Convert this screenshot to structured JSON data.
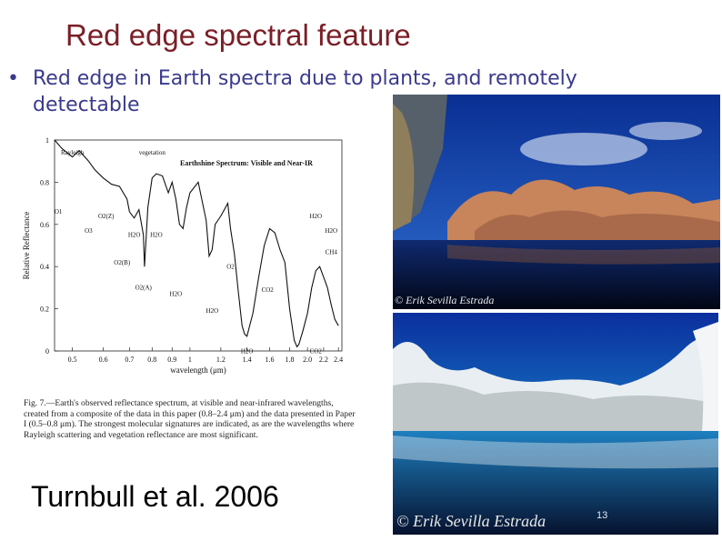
{
  "slide": {
    "title": "Red edge spectral feature",
    "bullet_marker": "•",
    "bullet_text": "Red edge in Earth spectra due to plants, and remotely detectable",
    "citation": "Turnbull et al. 2006",
    "page_number": "13"
  },
  "figure": {
    "caption": "Fig. 7.—Earth's observed reflectance spectrum, at visible and near-infrared wavelengths, created from a composite of the data in this paper (0.8–2.4 μm) and the data presented in Paper I (0.5–0.8 μm). The strongest molecular signatures are indicated, as are the wavelengths where Rayleigh scattering and vegetation reflectance are most significant."
  },
  "chart_data": {
    "type": "line",
    "title": "Earthshine Spectrum: Visible and Near-IR",
    "xlabel": "wavelength (μm)",
    "ylabel": "Relative Reflectance",
    "x_scale": "log",
    "xlim": [
      0.45,
      2.45
    ],
    "ylim": [
      0,
      1
    ],
    "x_ticks": [
      0.5,
      0.6,
      0.7,
      0.8,
      0.9,
      1.0,
      1.2,
      1.4,
      1.6,
      1.8,
      2.0,
      2.2,
      2.4
    ],
    "x_tick_labels": [
      "0.5",
      "0.6",
      "0.7",
      "0.8",
      "0.9",
      "1",
      "1.2",
      "1.4",
      "1.6",
      "1.8",
      "2.0",
      "2.2",
      "2.4"
    ],
    "y_ticks": [
      0,
      0.2,
      0.4,
      0.6,
      0.8,
      1
    ],
    "y_tick_labels": [
      "0",
      "0.2",
      "0.4",
      "0.6",
      "0.8",
      "1"
    ],
    "series": [
      {
        "x": [
          0.45,
          0.47,
          0.5,
          0.52,
          0.55,
          0.57,
          0.6,
          0.63,
          0.66,
          0.69,
          0.7,
          0.72,
          0.74,
          0.76,
          0.765,
          0.78,
          0.8,
          0.82,
          0.85,
          0.88,
          0.9,
          0.92,
          0.94,
          0.96,
          0.98,
          1.0,
          1.05,
          1.1,
          1.12,
          1.14,
          1.16,
          1.2,
          1.25,
          1.27,
          1.3,
          1.33,
          1.36,
          1.38,
          1.4,
          1.45,
          1.5,
          1.55,
          1.6,
          1.65,
          1.7,
          1.75,
          1.8,
          1.85,
          1.88,
          1.9,
          1.95,
          2.0,
          2.05,
          2.1,
          2.15,
          2.2,
          2.25,
          2.3,
          2.35,
          2.4
        ],
        "y": [
          1.0,
          0.96,
          0.92,
          0.95,
          0.9,
          0.86,
          0.82,
          0.79,
          0.78,
          0.72,
          0.66,
          0.63,
          0.67,
          0.55,
          0.4,
          0.68,
          0.82,
          0.84,
          0.83,
          0.75,
          0.8,
          0.72,
          0.6,
          0.58,
          0.68,
          0.75,
          0.8,
          0.62,
          0.45,
          0.48,
          0.6,
          0.64,
          0.7,
          0.58,
          0.46,
          0.28,
          0.12,
          0.08,
          0.07,
          0.18,
          0.35,
          0.5,
          0.58,
          0.56,
          0.48,
          0.42,
          0.2,
          0.05,
          0.02,
          0.03,
          0.1,
          0.18,
          0.3,
          0.38,
          0.4,
          0.35,
          0.3,
          0.22,
          0.15,
          0.12
        ]
      }
    ],
    "annotations": [
      {
        "text": "Rayleigh",
        "x": 0.5,
        "y": 0.93
      },
      {
        "text": "vegetation",
        "x": 0.8,
        "y": 0.93
      },
      {
        "text": "O3",
        "x": 0.55,
        "y": 0.56
      },
      {
        "text": "O2(B)",
        "x": 0.67,
        "y": 0.41
      },
      {
        "text": "O2(A)",
        "x": 0.76,
        "y": 0.29
      },
      {
        "text": "H2O",
        "x": 0.72,
        "y": 0.54
      },
      {
        "text": "H2O",
        "x": 0.82,
        "y": 0.54
      },
      {
        "text": "H2O",
        "x": 0.92,
        "y": 0.26
      },
      {
        "text": "H2O",
        "x": 1.14,
        "y": 0.18
      },
      {
        "text": "O2",
        "x": 1.27,
        "y": 0.39
      },
      {
        "text": "CO2",
        "x": 1.58,
        "y": 0.28
      },
      {
        "text": "H2O",
        "x": 1.4,
        "y": -0.01
      },
      {
        "text": "H2O",
        "x": 2.1,
        "y": 0.63
      },
      {
        "text": "H2O",
        "x": 2.3,
        "y": 0.56
      },
      {
        "text": "CH4",
        "x": 2.3,
        "y": 0.46
      },
      {
        "text": "CO2",
        "x": 2.1,
        "y": -0.01
      },
      {
        "text": "O1",
        "x": 0.46,
        "y": 0.65
      },
      {
        "text": "O2(Z)",
        "x": 0.61,
        "y": 0.63
      }
    ]
  },
  "photos": {
    "top_watermark": "© Erik Sevilla Estrada",
    "bottom_watermark": "© Erik Sevilla Estrada"
  },
  "colors": {
    "title": "#7a1f27",
    "bullet": "#3a3a8c",
    "sky_top": "#0d3aa8",
    "sky_bottom": "#1ea7d8"
  }
}
